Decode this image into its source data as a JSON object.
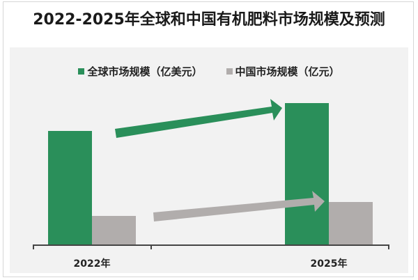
{
  "title": "2022-2025年全球和中国有机肥料市场规模及预测",
  "legend": [
    {
      "label": "全球市场规模（亿美元）",
      "color": "#2a8f5a"
    },
    {
      "label": "中国市场规模（亿元）",
      "color": "#b1adac"
    }
  ],
  "x_labels": [
    "2022年",
    "2025年"
  ],
  "chart_data": {
    "type": "bar",
    "title": "2022-2025年全球和中国有机肥料市场规模及预测",
    "categories": [
      "2022年",
      "2025年"
    ],
    "series": [
      {
        "name": "全球市场规模（亿美元）",
        "color": "#2a8f5a",
        "values": [
          163,
          203
        ]
      },
      {
        "name": "中国市场规模（亿元）",
        "color": "#b1adac",
        "values": [
          41,
          61
        ]
      }
    ],
    "values_note": "relative bar heights (no value axis shown)",
    "xlabel": "",
    "ylabel": "",
    "grid": false,
    "legend_position": "top",
    "annotations": [
      "green growth arrow 2022→2025",
      "gray growth arrow 2022→2025"
    ]
  }
}
